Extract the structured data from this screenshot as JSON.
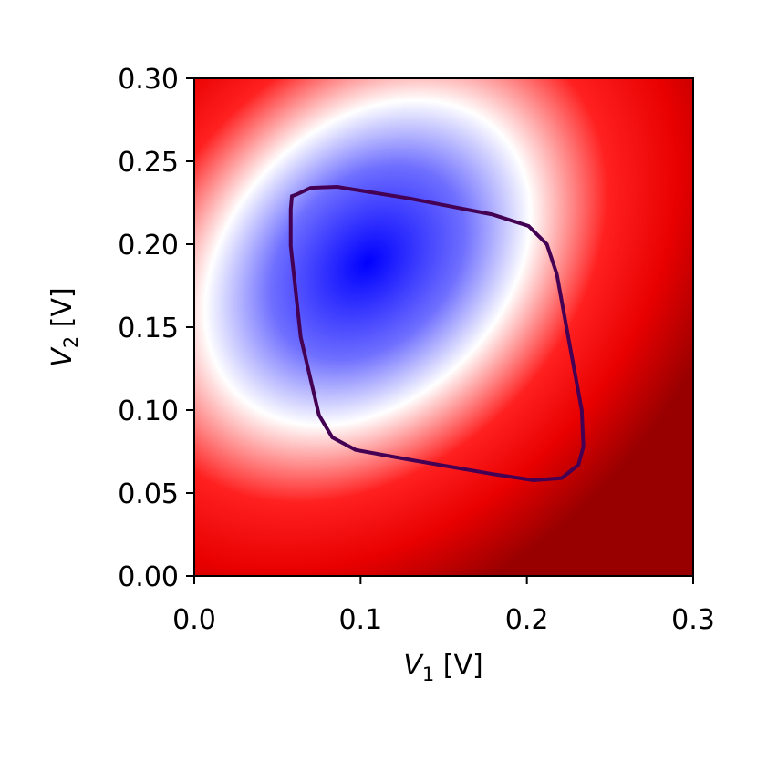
{
  "chart_data": {
    "type": "contour",
    "xlabel": [
      "V",
      "1",
      " [V]"
    ],
    "ylabel": [
      "V",
      "2",
      " [V]"
    ],
    "xlim": [
      0,
      0.3
    ],
    "ylim": [
      0,
      0.3
    ],
    "xticks": [
      {
        "value": 0,
        "label": "0.0"
      },
      0.1,
      0.2,
      0.3
    ],
    "yticks": [
      {
        "value": 0,
        "label": "0.00"
      },
      0.05,
      {
        "value": 0.1,
        "label": "0.10"
      },
      0.15,
      {
        "value": 0.2,
        "label": "0.20"
      },
      0.25,
      {
        "value": 0.3,
        "label": "0.30"
      }
    ],
    "contour": {
      "color": "#440154",
      "x": [
        0.0587,
        0.0615,
        0.07,
        0.086,
        0.13,
        0.179,
        0.201,
        0.212,
        0.218,
        0.226,
        0.233,
        0.234,
        0.231,
        0.221,
        0.204,
        0.179,
        0.13,
        0.097,
        0.083,
        0.075,
        0.064,
        0.058,
        0.058
      ],
      "y": [
        0.229,
        0.23,
        0.234,
        0.2346,
        0.2275,
        0.218,
        0.211,
        0.2,
        0.182,
        0.138,
        0.1,
        0.078,
        0.067,
        0.059,
        0.0577,
        0.0615,
        0.07,
        0.076,
        0.0835,
        0.097,
        0.144,
        0.199,
        0.221
      ]
    }
  }
}
